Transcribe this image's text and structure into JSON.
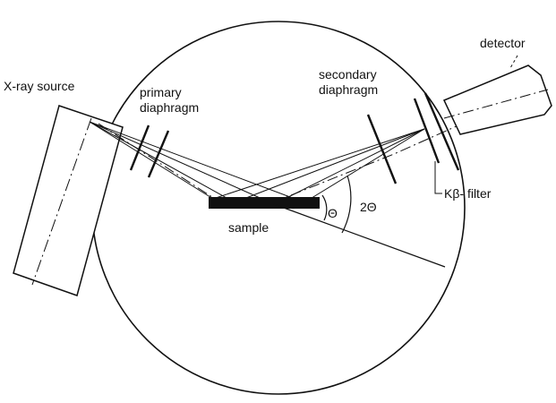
{
  "labels": {
    "xray_source": "X-ray source",
    "primary_diaphragm_line1": "primary",
    "primary_diaphragm_line2": "diaphragm",
    "secondary_diaphragm_line1": "secondary",
    "secondary_diaphragm_line2": "diaphragm",
    "detector": "detector",
    "kbeta_filter": "Kβ- filter",
    "sample": "sample",
    "theta": "Θ",
    "two_theta": "2Θ"
  },
  "colors": {
    "ink": "#111111",
    "background": "#ffffff"
  }
}
